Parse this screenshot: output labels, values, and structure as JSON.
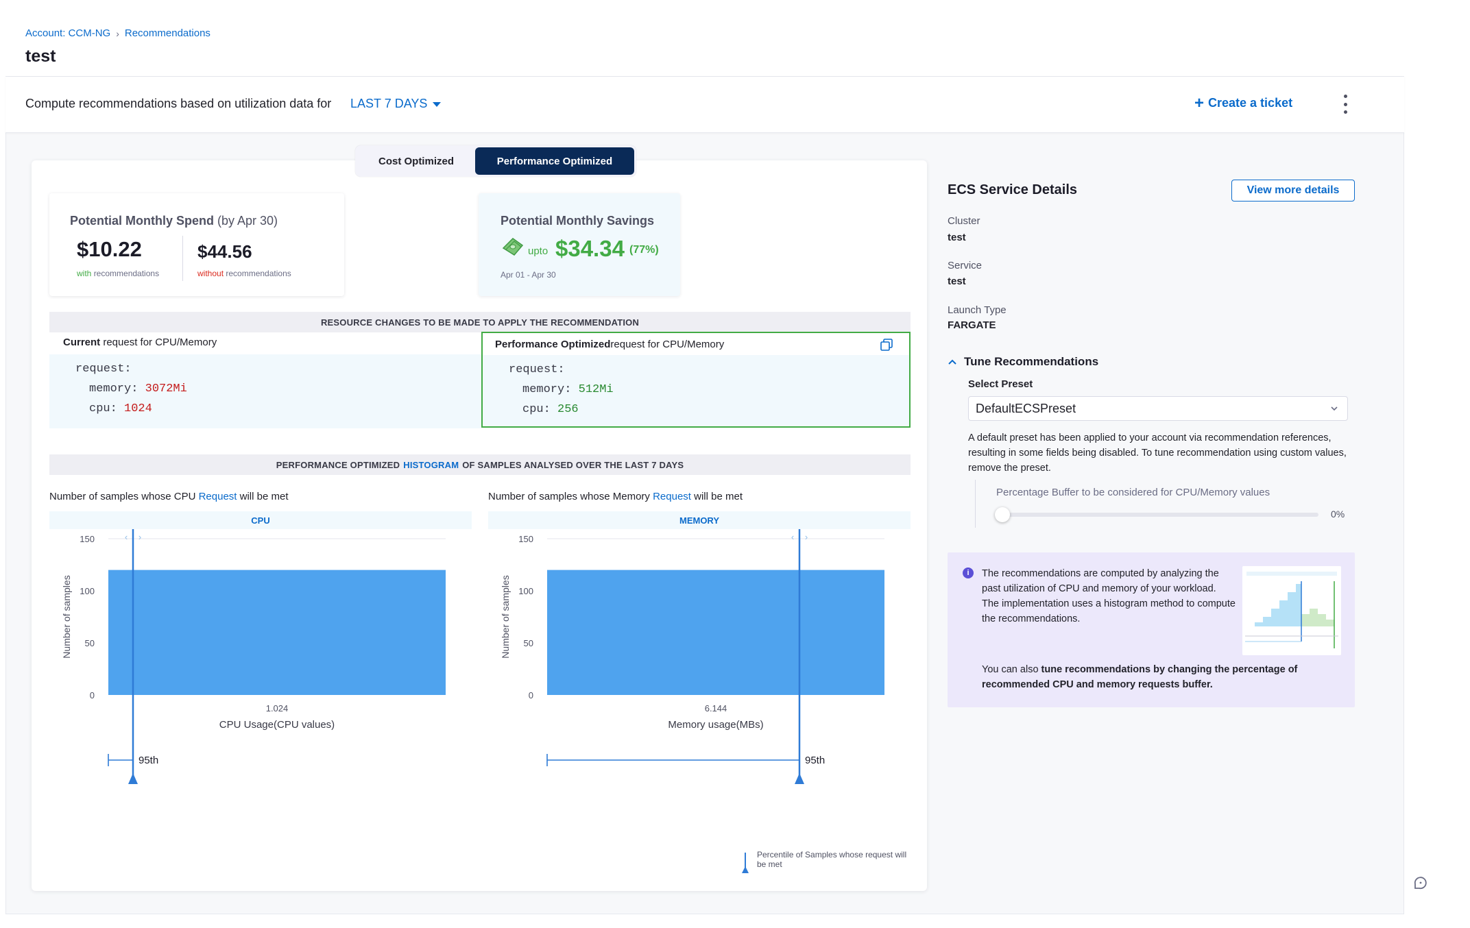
{
  "breadcrumb": {
    "account": "Account: CCM-NG",
    "separator": "›",
    "current": "Recommendations"
  },
  "page": {
    "title": "test"
  },
  "toolbar": {
    "description": "Compute recommendations based on utilization data for",
    "period": "LAST 7 DAYS",
    "create_ticket": "Create a ticket",
    "create_ticket_icon": "plus-icon",
    "more_icon": "kebab-menu-icon"
  },
  "mode_toggle": {
    "cost": "Cost Optimized",
    "performance": "Performance Optimized",
    "selected": "Performance Optimized"
  },
  "spend": {
    "label": "Potential Monthly Spend",
    "label_sub": "(by Apr 30)",
    "with_value": "$10.22",
    "with_caption_hl": "with",
    "with_caption_rest": "recommendations",
    "without_value": "$44.56",
    "without_caption_hl": "without",
    "without_caption_rest": "recommendations"
  },
  "savings": {
    "label": "Potential Monthly Savings",
    "upto": "upto",
    "amount": "$34.34",
    "percent": "(77%)",
    "range": "Apr 01 - Apr 30",
    "icon": "money-icon"
  },
  "resource_changes": {
    "title": "RESOURCE CHANGES TO BE MADE TO APPLY THE RECOMMENDATION",
    "current": {
      "head_bold": "Current",
      "head_rest": "request for CPU/Memory",
      "request_key": "request:",
      "memory_key": "memory:",
      "memory_val": "3072Mi",
      "cpu_key": "cpu:",
      "cpu_val": "1024"
    },
    "recommended": {
      "head_bold": "Performance Optimized",
      "head_rest": "request for CPU/Memory",
      "request_key": "request:",
      "memory_key": "memory:",
      "memory_val": "512Mi",
      "cpu_key": "cpu:",
      "cpu_val": "256",
      "copy_icon": "copy-icon"
    }
  },
  "histogram_section": {
    "title_pre": "PERFORMANCE OPTIMIZED",
    "title_hl": "HISTOGRAM",
    "title_post": "OF SAMPLES ANALYSED OVER THE LAST 7 DAYS",
    "cpu_title_pre": "Number of samples whose CPU",
    "cpu_title_hl": "Request",
    "cpu_title_post": "will be met",
    "mem_title_pre": "Number of samples whose Memory",
    "mem_title_hl": "Request",
    "mem_title_post": "will be met",
    "legend": "Percentile of Samples whose request will be met"
  },
  "chart_data": [
    {
      "type": "bar",
      "title": "CPU",
      "xlabel": "CPU Usage(CPU values)",
      "ylabel": "Number of samples",
      "categories": [
        "1.024"
      ],
      "values": [
        120
      ],
      "ylim": [
        0,
        150
      ],
      "yticks": [
        0,
        50,
        100,
        150
      ],
      "percentile_label": "95th",
      "color": "#4fa3ee",
      "marker_color": "#2f7bd6",
      "grid": true
    },
    {
      "type": "bar",
      "title": "MEMORY",
      "xlabel": "Memory usage(MBs)",
      "ylabel": "Number of samples",
      "categories": [
        "6.144"
      ],
      "values": [
        120
      ],
      "ylim": [
        0,
        150
      ],
      "yticks": [
        0,
        50,
        100,
        150
      ],
      "percentile_label": "95th",
      "color": "#4fa3ee",
      "marker_color": "#2f7bd6",
      "grid": true
    }
  ],
  "details": {
    "title": "ECS Service Details",
    "view_more": "View more details",
    "cluster_label": "Cluster",
    "cluster_value": "test",
    "service_label": "Service",
    "service_value": "test",
    "launch_label": "Launch Type",
    "launch_value": "FARGATE"
  },
  "tune": {
    "title": "Tune Recommendations",
    "preset_label": "Select Preset",
    "preset_value": "DefaultECSPreset",
    "help": "A default preset has been applied to your account via recommendation references, resulting in some fields being disabled. To tune recommendation using custom values, remove the preset.",
    "buffer_label": "Percentage Buffer to be considered for CPU/Memory values",
    "buffer_value": "0%",
    "buffer_level": 0
  },
  "info": {
    "text1": "The recommendations are computed by analyzing the past utilization of CPU and memory of your workload. The implementation uses a histogram method to compute the recommendations.",
    "text2_pre": "You can also",
    "text2_bold": "tune recommendations by changing the percentage of recommended CPU and memory requests buffer.",
    "icon": "info-icon"
  },
  "help_icon": "help-chat-icon"
}
